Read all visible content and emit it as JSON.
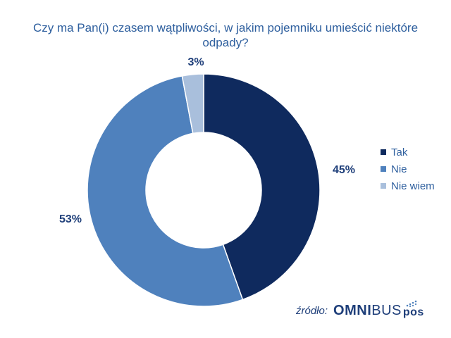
{
  "chart_data": {
    "type": "donut",
    "title": "Czy ma Pan(i) czasem wątpliwości, w jakim pojemniku umieścić niektóre odpady?",
    "categories": [
      "Tak",
      "Nie",
      "Nie wiem"
    ],
    "values": [
      45,
      53,
      3
    ],
    "value_labels": [
      "45%",
      "53%",
      "3%"
    ],
    "unit": "%",
    "colors": [
      "#0f2a5e",
      "#4f81bd",
      "#a9bfdc"
    ],
    "legend_position": "right"
  },
  "legend": {
    "items": [
      {
        "label": "Tak",
        "color": "#0f2a5e"
      },
      {
        "label": "Nie",
        "color": "#4f81bd"
      },
      {
        "label": "Nie wiem",
        "color": "#a9bfdc"
      }
    ]
  },
  "source": {
    "label": "źródło:",
    "logo_part1": "OMNI",
    "logo_part2": "BUS",
    "logo_part3": "pos"
  },
  "colors": {
    "title_text": "#2e5f9e",
    "label_text": "#1f3f7a",
    "logo_accent": "#4f81bd"
  }
}
